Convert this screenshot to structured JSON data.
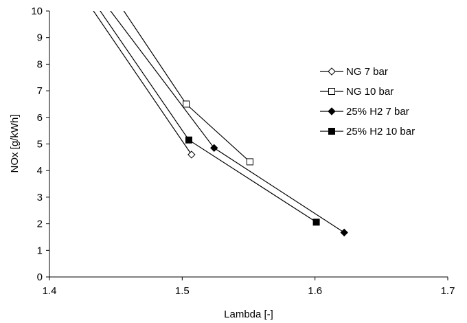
{
  "chart_data": {
    "type": "line",
    "xlabel": "Lambda [-]",
    "ylabel": "NOx [g/kWh]",
    "xlim": [
      1.4,
      1.7
    ],
    "ylim": [
      0,
      10
    ],
    "xticks": [
      "1.4",
      "1.5",
      "1.6",
      "1.7"
    ],
    "yticks": [
      "0",
      "1",
      "2",
      "3",
      "4",
      "5",
      "6",
      "7",
      "8",
      "9",
      "10"
    ],
    "grid": false,
    "legend_position": "right",
    "series": [
      {
        "name": "NG 7 bar",
        "marker": "diamond-open",
        "x": [
          1.425,
          1.507
        ],
        "y": [
          10.6,
          4.6
        ]
      },
      {
        "name": "NG 10 bar",
        "marker": "square-open",
        "x": [
          1.448,
          1.503,
          1.551
        ],
        "y": [
          10.6,
          6.5,
          4.33
        ]
      },
      {
        "name": "25% H2 7 bar",
        "marker": "diamond-filled",
        "x": [
          1.437,
          1.524,
          1.622
        ],
        "y": [
          10.6,
          4.85,
          1.67
        ]
      },
      {
        "name": "25% H2 10 bar",
        "marker": "square-filled",
        "x": [
          1.43,
          1.505,
          1.601
        ],
        "y": [
          10.6,
          5.15,
          2.06
        ]
      }
    ]
  }
}
